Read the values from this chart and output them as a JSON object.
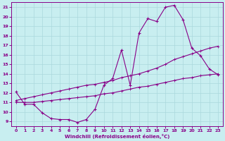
{
  "xlabel": "Windchill (Refroidissement éolien,°C)",
  "xlim": [
    -0.5,
    23.5
  ],
  "ylim": [
    8.5,
    21.5
  ],
  "yticks": [
    9,
    10,
    11,
    12,
    13,
    14,
    15,
    16,
    17,
    18,
    19,
    20,
    21
  ],
  "xticks": [
    0,
    1,
    2,
    3,
    4,
    5,
    6,
    7,
    8,
    9,
    10,
    11,
    12,
    13,
    14,
    15,
    16,
    17,
    18,
    19,
    20,
    21,
    22,
    23
  ],
  "bg_color": "#c8eef0",
  "line_color": "#880088",
  "grid_color": "#aad8dc",
  "line1_x": [
    0,
    1,
    2,
    3,
    4,
    5,
    6,
    7,
    8,
    9,
    10,
    11,
    12,
    13,
    14,
    15,
    16,
    17,
    18,
    19,
    20,
    21,
    22,
    23
  ],
  "line1_y": [
    12.1,
    10.8,
    10.8,
    9.9,
    9.3,
    9.2,
    9.2,
    8.9,
    9.2,
    10.3,
    12.8,
    13.5,
    16.5,
    12.8,
    18.3,
    19.8,
    19.5,
    21.0,
    21.2,
    19.7,
    16.7,
    15.9,
    14.5,
    13.9
  ],
  "line2_x": [
    0,
    1,
    2,
    3,
    4,
    5,
    6,
    7,
    8,
    9,
    10,
    11,
    12,
    13,
    14,
    15,
    16,
    17,
    18,
    19,
    20,
    21,
    22,
    23
  ],
  "line2_y": [
    11.0,
    11.0,
    11.0,
    11.1,
    11.2,
    11.3,
    11.4,
    11.5,
    11.6,
    11.7,
    11.9,
    12.0,
    12.2,
    12.4,
    12.6,
    12.7,
    12.9,
    13.1,
    13.3,
    13.5,
    13.6,
    13.8,
    13.9,
    14.0
  ],
  "line3_x": [
    0,
    1,
    2,
    3,
    4,
    5,
    6,
    7,
    8,
    9,
    10,
    11,
    12,
    13,
    14,
    15,
    16,
    17,
    18,
    19,
    20,
    21,
    22,
    23
  ],
  "line3_y": [
    11.2,
    11.4,
    11.6,
    11.8,
    12.0,
    12.2,
    12.4,
    12.6,
    12.8,
    12.9,
    13.1,
    13.3,
    13.6,
    13.8,
    14.0,
    14.3,
    14.6,
    15.0,
    15.5,
    15.8,
    16.1,
    16.4,
    16.7,
    16.9
  ]
}
